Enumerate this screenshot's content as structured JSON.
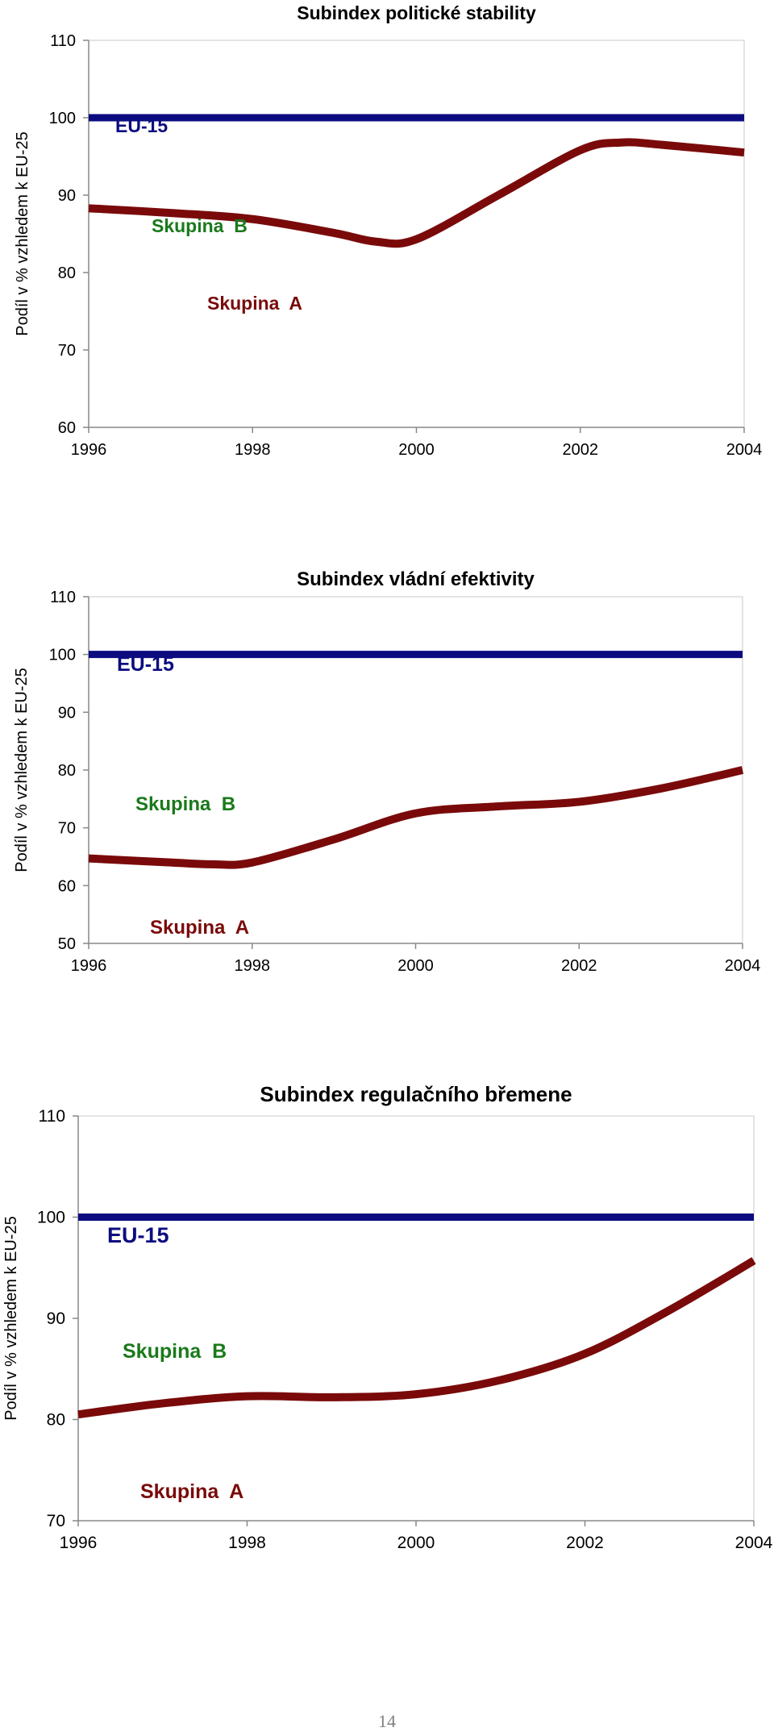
{
  "page": {
    "number": "14"
  },
  "colors": {
    "eu": "#0c0c80",
    "group_a": "#7a0a0a",
    "group_b": "#1a7a1a",
    "axis": "#888888",
    "text": "#000000"
  },
  "chart_data": [
    {
      "type": "line",
      "title": "Subindex politické stability",
      "xlabel": "",
      "ylabel": "Podíl v % vzhledem k EU-25",
      "xlim": [
        1996,
        2004
      ],
      "ylim": [
        60,
        110
      ],
      "x_ticks": [
        "1996",
        "1998",
        "2000",
        "2002",
        "2004"
      ],
      "y_ticks": [
        "60",
        "70",
        "80",
        "90",
        "100",
        "110"
      ],
      "grid": false,
      "series": [
        {
          "name": "EU-15",
          "x": [
            1996,
            2004
          ],
          "values": [
            100,
            100
          ]
        },
        {
          "name": "Skupina A",
          "x": [
            1996,
            1997,
            1998,
            1999,
            1999.5,
            2000,
            2001,
            2002,
            2002.5,
            2003,
            2004
          ],
          "values": [
            88.3,
            87.7,
            86.9,
            85.1,
            84.0,
            84.3,
            90.0,
            95.8,
            96.8,
            96.5,
            95.5
          ]
        }
      ],
      "labels": {
        "eu": "EU-15",
        "group_b": "Skupina  B",
        "group_a": "Skupina  A"
      }
    },
    {
      "type": "line",
      "title": "Subindex vládní efektivity",
      "xlabel": "",
      "ylabel": "Podíl v % vzhledem k EU-25",
      "xlim": [
        1996,
        2004
      ],
      "ylim": [
        50,
        110
      ],
      "x_ticks": [
        "1996",
        "1998",
        "2000",
        "2002",
        "2004"
      ],
      "y_ticks": [
        "50",
        "60",
        "70",
        "80",
        "90",
        "100",
        "110"
      ],
      "grid": false,
      "series": [
        {
          "name": "EU-15",
          "x": [
            1996,
            2004
          ],
          "values": [
            100,
            100
          ]
        },
        {
          "name": "Skupina A",
          "x": [
            1996,
            1997,
            1997.5,
            1998,
            1999,
            2000,
            2001,
            2002,
            2003,
            2004
          ],
          "values": [
            64.7,
            64.0,
            63.7,
            64.0,
            68.0,
            72.5,
            73.7,
            74.5,
            76.8,
            80.0
          ]
        }
      ],
      "labels": {
        "eu": "EU-15",
        "group_b": "Skupina  B",
        "group_a": "Skupina  A"
      }
    },
    {
      "type": "line",
      "title": "Subindex regulačního břemene",
      "xlabel": "",
      "ylabel": "Podíl v % vzhledem k EU-25",
      "xlim": [
        1996,
        2004
      ],
      "ylim": [
        70,
        110
      ],
      "x_ticks": [
        "1996",
        "1998",
        "2000",
        "2002",
        "2004"
      ],
      "y_ticks": [
        "70",
        "80",
        "90",
        "100",
        "110"
      ],
      "grid": false,
      "series": [
        {
          "name": "EU-15",
          "x": [
            1996,
            2004
          ],
          "values": [
            100,
            100
          ]
        },
        {
          "name": "Skupina A",
          "x": [
            1996,
            1997,
            1998,
            1999,
            2000,
            2001,
            2002,
            2003,
            2004
          ],
          "values": [
            80.5,
            81.6,
            82.3,
            82.2,
            82.5,
            83.9,
            86.5,
            90.8,
            95.7
          ]
        }
      ],
      "labels": {
        "eu": "EU-15",
        "group_b": "Skupina  B",
        "group_a": "Skupina  A"
      }
    }
  ]
}
